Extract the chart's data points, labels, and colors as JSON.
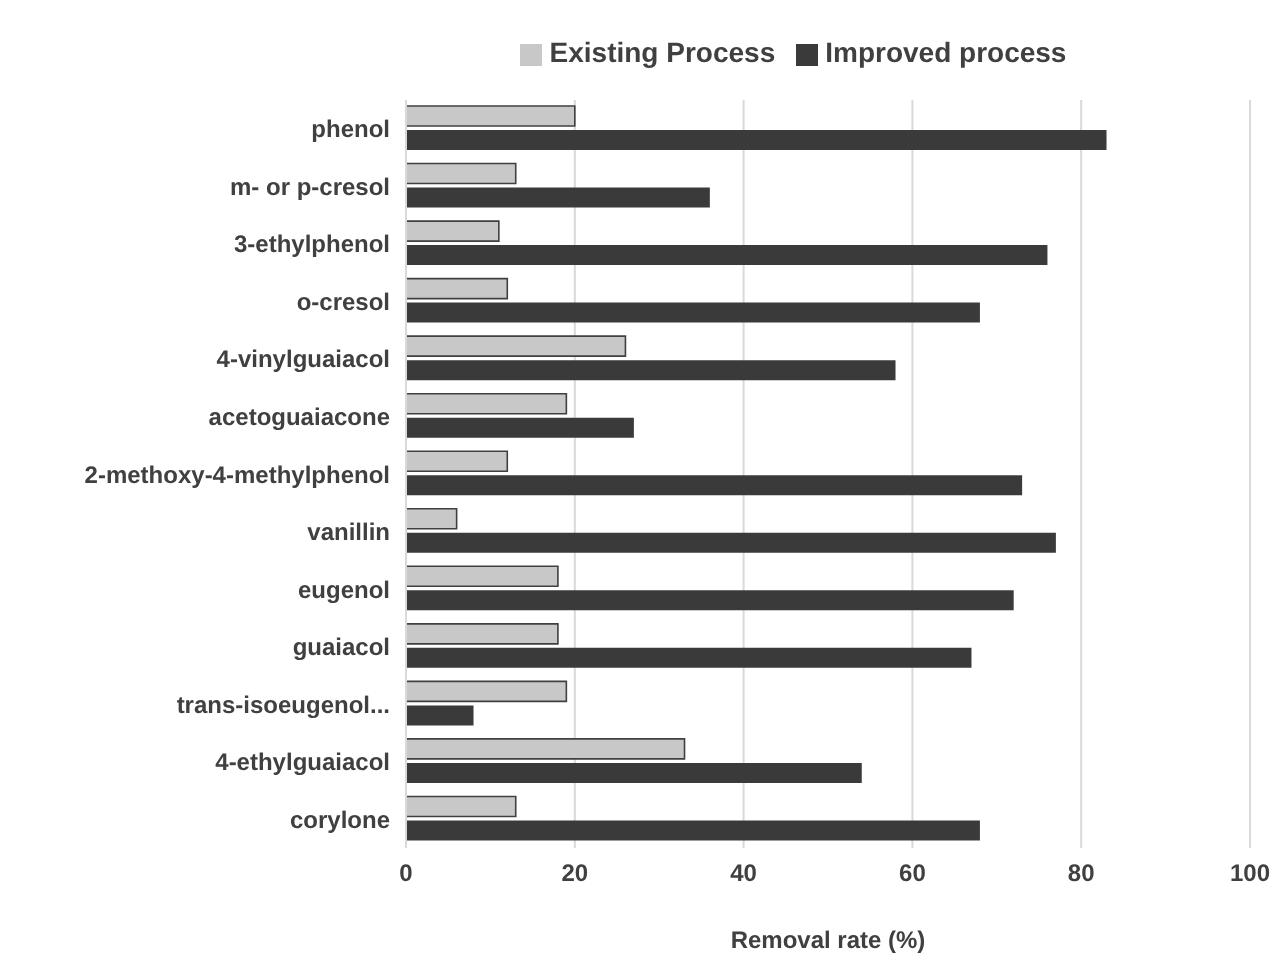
{
  "chart_data": {
    "type": "bar",
    "orientation": "horizontal",
    "xlabel": "Removal rate (%)",
    "categories": [
      "phenol",
      "m- or p-cresol",
      "3-ethylphenol",
      "o-cresol",
      "4-vinylguaiacol",
      "acetoguaiacone",
      "2-methoxy-4-methylphenol",
      "vanillin",
      "eugenol",
      "guaiacol",
      "trans-isoeugenol...",
      "4-ethylguaiacol",
      "corylone"
    ],
    "series": [
      {
        "name": "Existing Process",
        "color": "#c8c8c8",
        "values": [
          20,
          13,
          11,
          12,
          26,
          19,
          12,
          6,
          18,
          18,
          19,
          33,
          13
        ]
      },
      {
        "name": "Improved process",
        "color": "#3a3a3a",
        "values": [
          83,
          36,
          76,
          68,
          58,
          27,
          73,
          77,
          72,
          67,
          8,
          54,
          68
        ]
      }
    ],
    "xlim": [
      0,
      100
    ],
    "xticks": [
      0,
      20,
      40,
      60,
      80,
      100
    ],
    "grid": "x",
    "legend": "top"
  }
}
